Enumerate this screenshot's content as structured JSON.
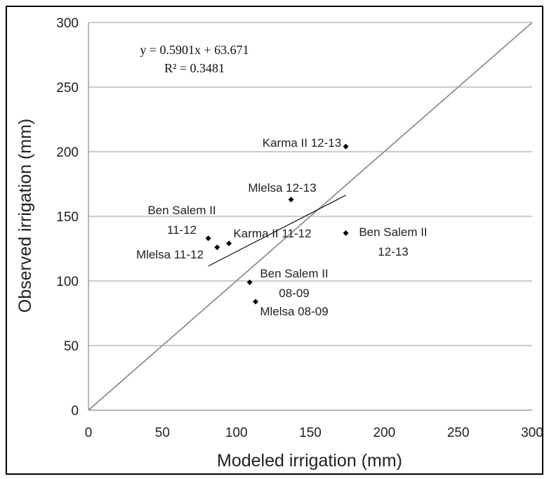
{
  "chart_data": {
    "type": "scatter",
    "xlabel": "Modeled irrigation (mm)",
    "ylabel": "Observed irrigation (mm)",
    "xlim": [
      0,
      300
    ],
    "ylim": [
      0,
      300
    ],
    "xticks": [
      "0",
      "50",
      "100",
      "150",
      "200",
      "250",
      "300"
    ],
    "yticks": [
      "0",
      "50",
      "100",
      "150",
      "200",
      "250",
      "300"
    ],
    "grid": "horizontal",
    "points": [
      {
        "label": "Karma II 12-13",
        "x": 174,
        "y": 204
      },
      {
        "label": "Mlelsa 12-13",
        "x": 137,
        "y": 163
      },
      {
        "label": "Ben Salem II 11-12",
        "x": 81,
        "y": 133
      },
      {
        "label": "Karma II 11-12",
        "x": 95,
        "y": 129
      },
      {
        "label": "Mlelsa 11-12",
        "x": 87,
        "y": 126
      },
      {
        "label": "Ben Salem II 12-13",
        "x": 174,
        "y": 137
      },
      {
        "label": "Ben Salem II 08-09",
        "x": 109,
        "y": 99
      },
      {
        "label": "Mlelsa 08-09",
        "x": 113,
        "y": 84
      }
    ],
    "trendline": {
      "equation": "y = 0.5901x + 63.671",
      "r2": "R² = 0.3481",
      "slope": 0.5901,
      "intercept": 63.671,
      "x_range": [
        81,
        174
      ]
    },
    "reference_line": {
      "type": "1:1",
      "from": [
        0,
        0
      ],
      "to": [
        300,
        300
      ]
    }
  }
}
